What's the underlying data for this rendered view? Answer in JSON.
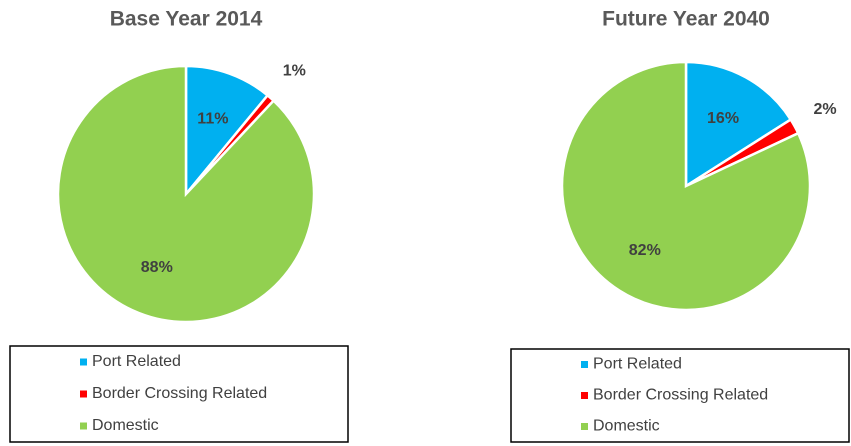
{
  "chart_data": [
    {
      "type": "pie",
      "title": "Base Year 2014",
      "categories": [
        "Port Related",
        "Border Crossing Related",
        "Domestic"
      ],
      "values": [
        11,
        1,
        88
      ],
      "value_labels": [
        "11%",
        "1%",
        "88%"
      ],
      "colors": [
        "#00b0f0",
        "#ff0000",
        "#92d050"
      ]
    },
    {
      "type": "pie",
      "title": "Future Year 2040",
      "categories": [
        "Port Related",
        "Border Crossing Related",
        "Domestic"
      ],
      "values": [
        16,
        2,
        82
      ],
      "value_labels": [
        "16%",
        "2%",
        "82%"
      ],
      "colors": [
        "#00b0f0",
        "#ff0000",
        "#92d050"
      ]
    }
  ]
}
